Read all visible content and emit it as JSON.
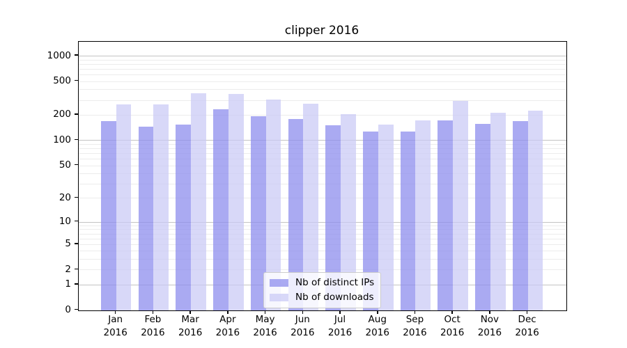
{
  "chart_data": {
    "type": "bar",
    "title": "clipper 2016",
    "year": "2016",
    "categories": [
      "Jan",
      "Feb",
      "Mar",
      "Apr",
      "May",
      "Jun",
      "Jul",
      "Aug",
      "Sep",
      "Oct",
      "Nov",
      "Dec"
    ],
    "series": [
      {
        "name": "Nb of distinct IPs",
        "color": "rgba(141,141,238,0.75)",
        "values": [
          168,
          146,
          152,
          234,
          193,
          179,
          150,
          126,
          126,
          173,
          157,
          168
        ]
      },
      {
        "name": "Nb of downloads",
        "color": "rgba(201,201,245,0.72)",
        "values": [
          266,
          265,
          363,
          350,
          306,
          270,
          203,
          152,
          172,
          290,
          213,
          222
        ]
      }
    ],
    "y_scale": "log1p",
    "y_ticks": [
      0,
      1,
      2,
      5,
      10,
      20,
      50,
      100,
      200,
      500,
      1000
    ],
    "grid": {
      "major": [
        1,
        10,
        100,
        1000
      ],
      "minor": [
        2,
        3,
        4,
        5,
        6,
        7,
        8,
        9,
        20,
        30,
        40,
        50,
        60,
        70,
        80,
        90,
        200,
        300,
        400,
        500,
        600,
        700,
        800,
        900
      ],
      "major_color": "#c3c3c3",
      "minor_color": "#ececec"
    },
    "ylim": [
      0,
      1460
    ],
    "legend_position": "lower-center",
    "xlabel": "",
    "ylabel": ""
  }
}
